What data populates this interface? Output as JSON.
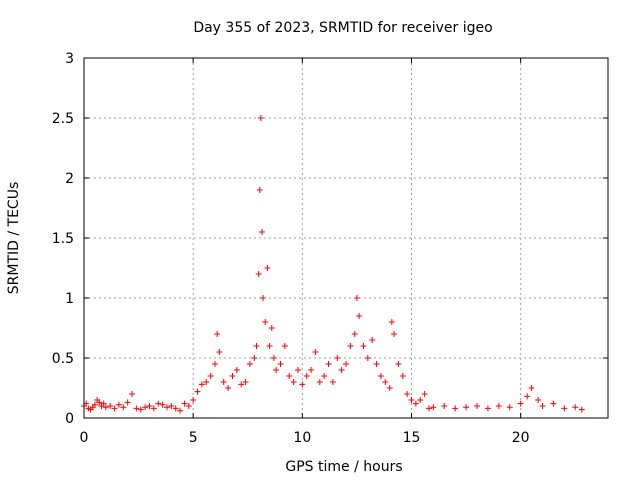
{
  "chart_data": {
    "type": "scatter",
    "title": "Day 355 of 2023, SRMTID for receiver igeo",
    "xlabel": "GPS time / hours",
    "ylabel": "SRMTID / TECUs",
    "xlim": [
      0,
      24
    ],
    "ylim": [
      0,
      3
    ],
    "xticks": [
      0,
      5,
      10,
      15,
      20
    ],
    "yticks": [
      0,
      0.5,
      1,
      1.5,
      2,
      2.5,
      3
    ],
    "grid": true,
    "marker": "+",
    "color": "#ff0000",
    "series": [
      {
        "name": "SRMTID",
        "x": [
          0.0,
          0.1,
          0.2,
          0.3,
          0.4,
          0.5,
          0.6,
          0.7,
          0.8,
          0.9,
          1.0,
          1.2,
          1.4,
          1.6,
          1.8,
          2.0,
          2.2,
          2.4,
          2.6,
          2.8,
          3.0,
          3.2,
          3.4,
          3.6,
          3.8,
          4.0,
          4.2,
          4.4,
          4.6,
          4.8,
          5.0,
          5.2,
          5.4,
          5.6,
          5.8,
          6.0,
          6.1,
          6.2,
          6.4,
          6.6,
          6.8,
          7.0,
          7.2,
          7.4,
          7.6,
          7.8,
          7.9,
          8.0,
          8.05,
          8.1,
          8.15,
          8.2,
          8.3,
          8.4,
          8.5,
          8.6,
          8.7,
          8.8,
          9.0,
          9.2,
          9.4,
          9.6,
          9.8,
          10.0,
          10.2,
          10.4,
          10.6,
          10.8,
          11.0,
          11.2,
          11.4,
          11.6,
          11.8,
          12.0,
          12.2,
          12.4,
          12.5,
          12.6,
          12.8,
          13.0,
          13.2,
          13.4,
          13.6,
          13.8,
          14.0,
          14.1,
          14.2,
          14.4,
          14.6,
          14.8,
          15.0,
          15.2,
          15.4,
          15.6,
          15.8,
          16.0,
          16.5,
          17.0,
          17.5,
          18.0,
          18.5,
          19.0,
          19.5,
          20.0,
          20.3,
          20.5,
          20.8,
          21.0,
          21.5,
          22.0,
          22.5,
          22.8
        ],
        "y": [
          0.1,
          0.12,
          0.08,
          0.07,
          0.09,
          0.11,
          0.15,
          0.13,
          0.1,
          0.12,
          0.09,
          0.1,
          0.08,
          0.11,
          0.09,
          0.13,
          0.2,
          0.08,
          0.07,
          0.09,
          0.1,
          0.08,
          0.12,
          0.11,
          0.09,
          0.1,
          0.08,
          0.06,
          0.12,
          0.1,
          0.15,
          0.22,
          0.28,
          0.3,
          0.35,
          0.45,
          0.7,
          0.55,
          0.3,
          0.25,
          0.35,
          0.4,
          0.28,
          0.3,
          0.45,
          0.5,
          0.6,
          1.2,
          1.9,
          2.5,
          1.55,
          1.0,
          0.8,
          1.25,
          0.6,
          0.75,
          0.5,
          0.4,
          0.45,
          0.6,
          0.35,
          0.3,
          0.4,
          0.28,
          0.35,
          0.4,
          0.55,
          0.3,
          0.35,
          0.45,
          0.3,
          0.5,
          0.4,
          0.45,
          0.6,
          0.7,
          1.0,
          0.85,
          0.6,
          0.5,
          0.65,
          0.45,
          0.35,
          0.3,
          0.25,
          0.8,
          0.7,
          0.45,
          0.35,
          0.2,
          0.15,
          0.12,
          0.15,
          0.2,
          0.08,
          0.09,
          0.1,
          0.08,
          0.09,
          0.1,
          0.08,
          0.1,
          0.09,
          0.12,
          0.18,
          0.25,
          0.15,
          0.1,
          0.12,
          0.08,
          0.09,
          0.07
        ]
      }
    ]
  }
}
